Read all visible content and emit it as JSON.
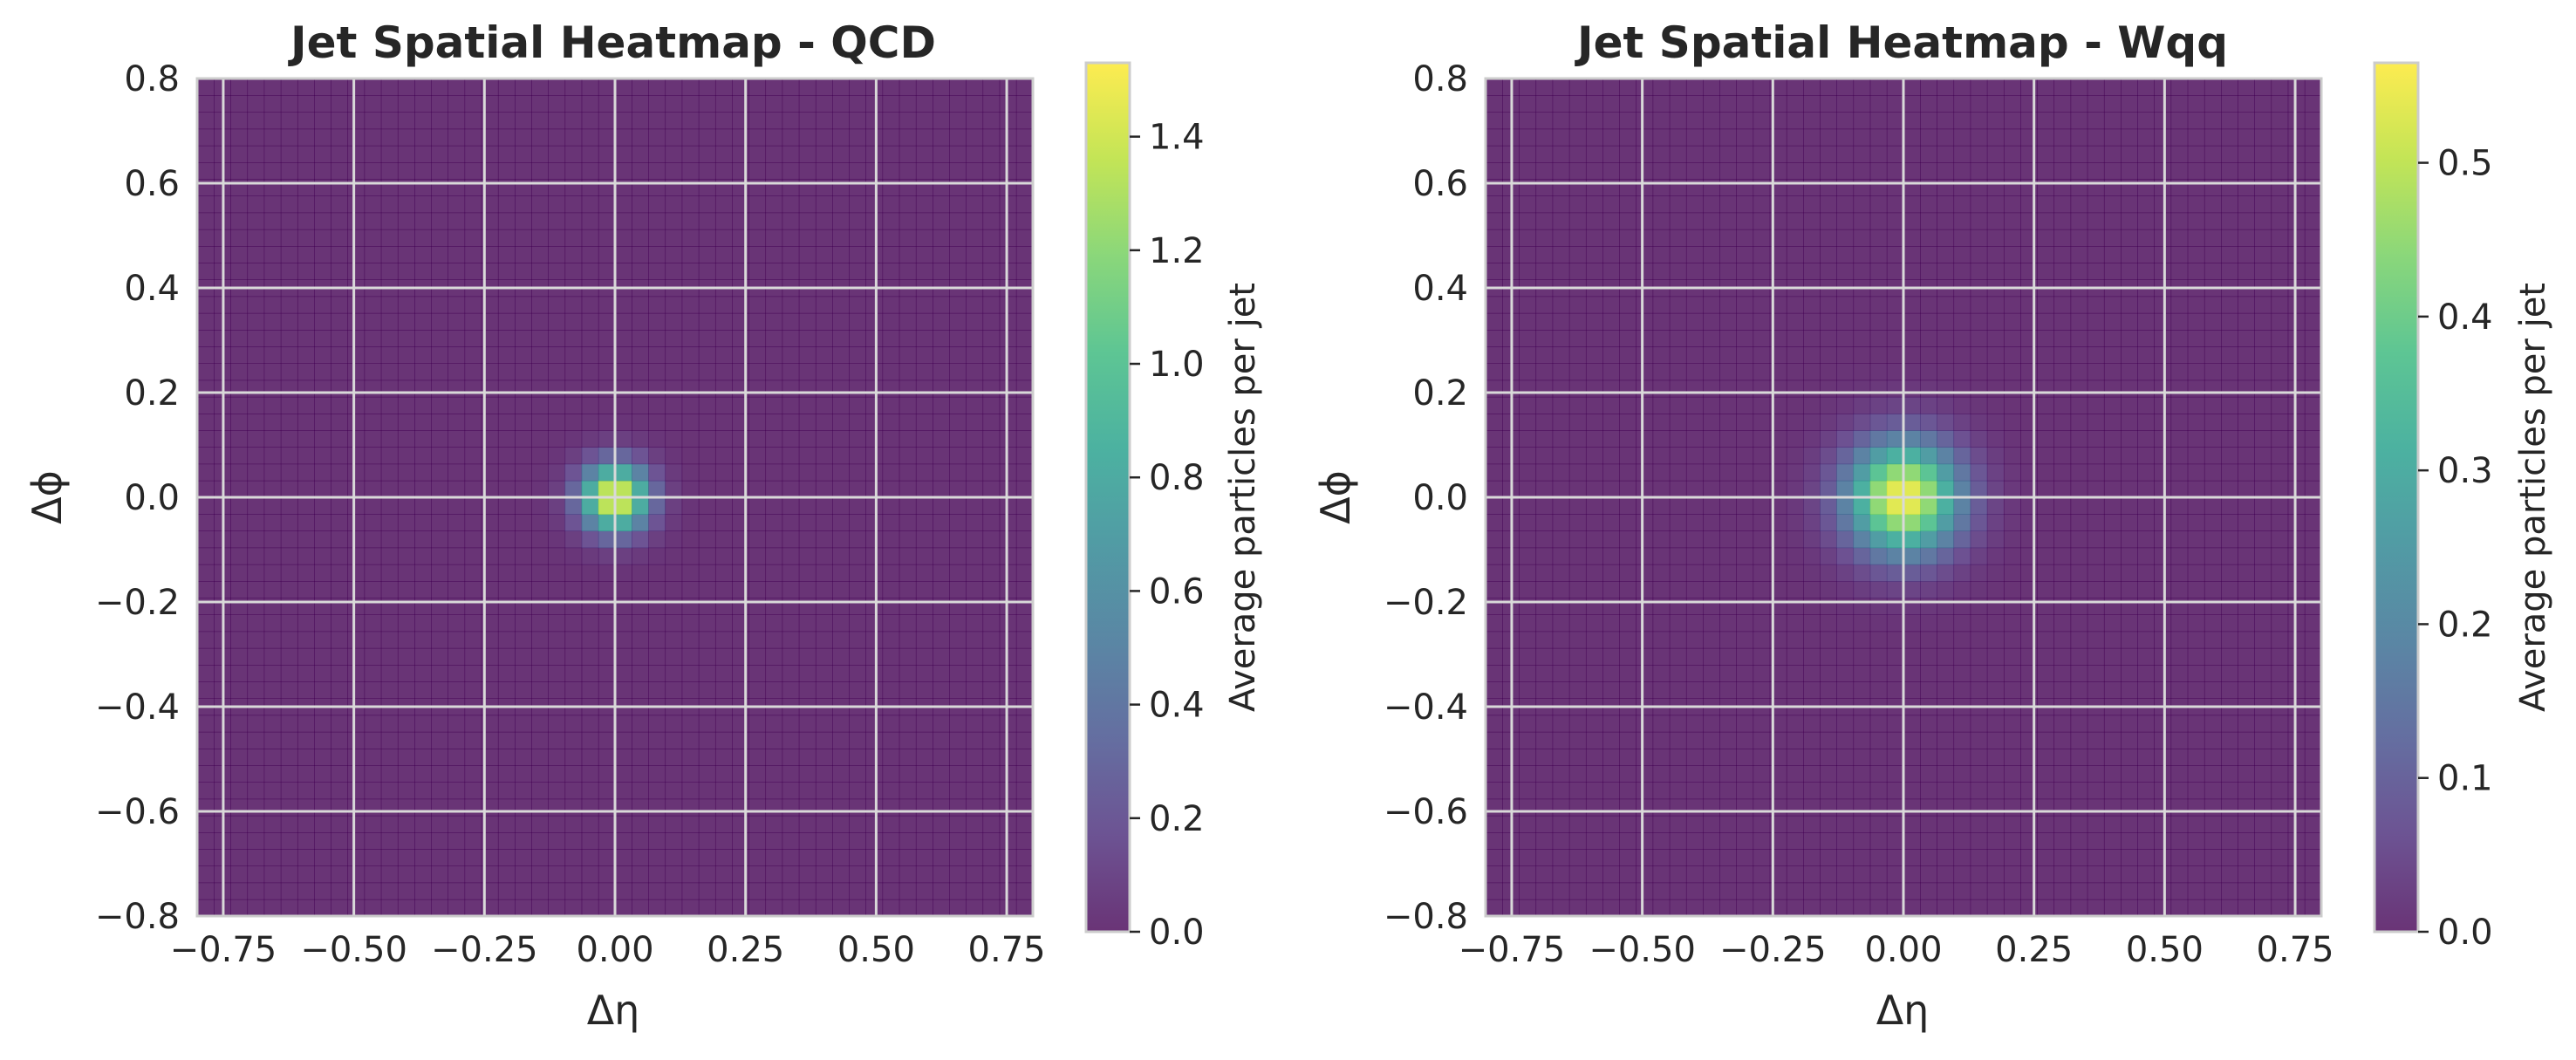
{
  "chart_data": [
    {
      "type": "heatmap",
      "title": "Jet Spatial Heatmap - QCD",
      "xlabel": "Δη",
      "ylabel": "Δϕ",
      "xlim": [
        -0.8,
        0.8
      ],
      "ylim": [
        -0.8,
        0.8
      ],
      "grid": true,
      "colormap": "viridis",
      "x_ticks": [
        "−0.75",
        "−0.50",
        "−0.25",
        "0.00",
        "0.25",
        "0.50",
        "0.75"
      ],
      "x_tick_values": [
        -0.75,
        -0.5,
        -0.25,
        0,
        0.25,
        0.5,
        0.75
      ],
      "y_ticks": [
        "0.8",
        "0.6",
        "0.4",
        "0.2",
        "0.0",
        "−0.2",
        "−0.4",
        "−0.6",
        "−0.8"
      ],
      "y_tick_values": [
        0.8,
        0.6,
        0.4,
        0.2,
        0,
        -0.2,
        -0.4,
        -0.6,
        -0.8
      ],
      "bins": 50,
      "peak_value": 1.52,
      "peak_center": [
        0.0,
        0.0
      ],
      "spread_sigma": 0.045,
      "colorbar": {
        "label": "Average particles per jet",
        "range": [
          0,
          1.53
        ],
        "ticks": [
          "0.0",
          "0.2",
          "0.4",
          "0.6",
          "0.8",
          "1.0",
          "1.2",
          "1.4"
        ],
        "tick_values": [
          0,
          0.2,
          0.4,
          0.6,
          0.8,
          1.0,
          1.2,
          1.4
        ]
      }
    },
    {
      "type": "heatmap",
      "title": "Jet Spatial Heatmap - Wqq",
      "xlabel": "Δη",
      "ylabel": "Δϕ",
      "xlim": [
        -0.8,
        0.8
      ],
      "ylim": [
        -0.8,
        0.8
      ],
      "grid": true,
      "colormap": "viridis",
      "x_ticks": [
        "−0.75",
        "−0.50",
        "−0.25",
        "0.00",
        "0.25",
        "0.50",
        "0.75"
      ],
      "x_tick_values": [
        -0.75,
        -0.5,
        -0.25,
        0,
        0.25,
        0.5,
        0.75
      ],
      "y_ticks": [
        "0.8",
        "0.6",
        "0.4",
        "0.2",
        "0.0",
        "−0.2",
        "−0.4",
        "−0.6",
        "−0.8"
      ],
      "y_tick_values": [
        0.8,
        0.6,
        0.4,
        0.2,
        0,
        -0.2,
        -0.4,
        -0.6,
        -0.8
      ],
      "bins": 50,
      "peak_value": 0.56,
      "peak_center": [
        0.0,
        0.0
      ],
      "spread_sigma": 0.075,
      "colorbar": {
        "label": "Average particles per jet",
        "range": [
          0,
          0.565
        ],
        "ticks": [
          "0.0",
          "0.1",
          "0.2",
          "0.3",
          "0.4",
          "0.5"
        ],
        "tick_values": [
          0,
          0.1,
          0.2,
          0.3,
          0.4,
          0.5
        ]
      }
    }
  ]
}
